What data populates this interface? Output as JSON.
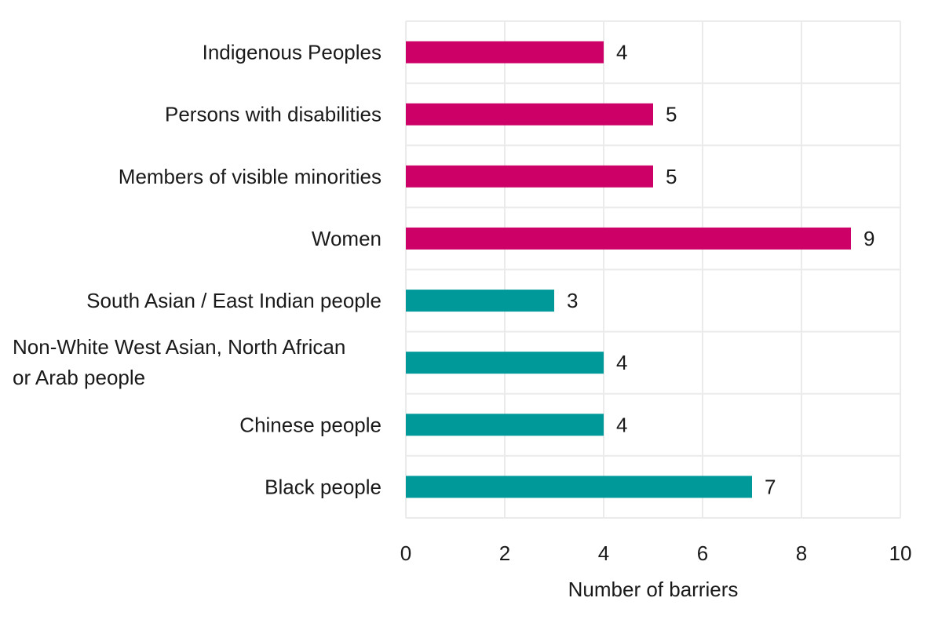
{
  "chart_data": {
    "type": "bar",
    "orientation": "horizontal",
    "categories": [
      "Indigenous Peoples",
      "Persons with disabilities",
      "Members of visible minorities",
      "Women",
      "South Asian / East Indian people",
      [
        "Non-White West Asian, North African",
        "or Arab people"
      ],
      "Chinese people",
      "Black people"
    ],
    "values": [
      4,
      5,
      5,
      9,
      3,
      4,
      4,
      7
    ],
    "bar_colors": [
      "#cc0066",
      "#cc0066",
      "#cc0066",
      "#cc0066",
      "#009999",
      "#009999",
      "#009999",
      "#009999"
    ],
    "xlabel": "Number of barriers",
    "ylabel": "",
    "xlim": [
      0,
      10
    ],
    "xticks": [
      0,
      2,
      4,
      6,
      8,
      10
    ],
    "grid": true,
    "legend": "none"
  }
}
